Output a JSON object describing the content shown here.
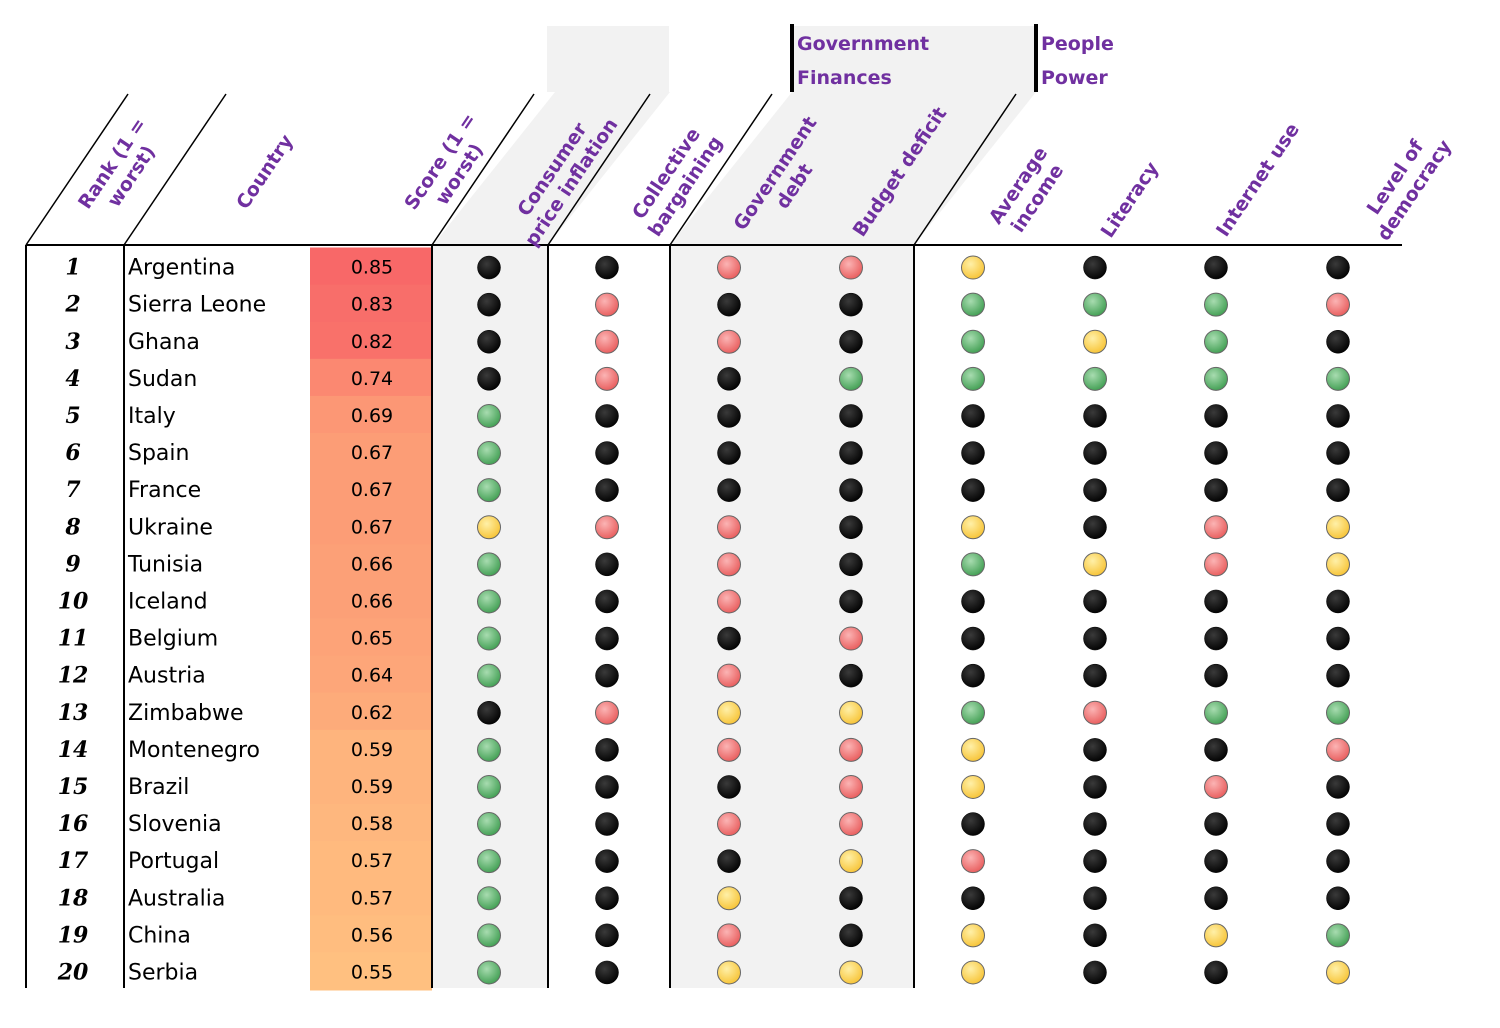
{
  "chart_data": {
    "type": "table",
    "title": "",
    "groups": [
      {
        "label_lines": [
          "Government",
          "Finances"
        ]
      },
      {
        "label_lines": [
          "People",
          "Power"
        ]
      }
    ],
    "columns": [
      {
        "key": "rank",
        "label_lines": [
          "Rank (1 =",
          "worst)"
        ]
      },
      {
        "key": "country",
        "label_lines": [
          "Country"
        ]
      },
      {
        "key": "score",
        "label_lines": [
          "Score (1 =",
          "worst)"
        ]
      },
      {
        "key": "inflation",
        "label_lines": [
          "Consumer",
          "price inflation"
        ]
      },
      {
        "key": "bargaining",
        "label_lines": [
          "Collective",
          "bargaining"
        ]
      },
      {
        "key": "debt",
        "label_lines": [
          "Government",
          "debt"
        ]
      },
      {
        "key": "deficit",
        "label_lines": [
          "Budget deficit"
        ]
      },
      {
        "key": "income",
        "label_lines": [
          "Average",
          "income"
        ]
      },
      {
        "key": "literacy",
        "label_lines": [
          "Literacy"
        ]
      },
      {
        "key": "internet",
        "label_lines": [
          "Internet use"
        ]
      },
      {
        "key": "democracy",
        "label_lines": [
          "Level of",
          "democracy"
        ]
      }
    ],
    "indicator_colors": {
      "black": "#000000",
      "red": "#f07070",
      "yellow": "#ffd24a",
      "green": "#4fae5f"
    },
    "score_colors": {
      "high": "#f86868",
      "low": "#ffc080"
    },
    "rows": [
      {
        "rank": "1",
        "country": "Argentina",
        "score": "0.85",
        "indicators": [
          "black",
          "black",
          "red",
          "red",
          "yellow",
          "black",
          "black",
          "black"
        ]
      },
      {
        "rank": "2",
        "country": "Sierra Leone",
        "score": "0.83",
        "indicators": [
          "black",
          "red",
          "black",
          "black",
          "green",
          "green",
          "green",
          "red"
        ]
      },
      {
        "rank": "3",
        "country": "Ghana",
        "score": "0.82",
        "indicators": [
          "black",
          "red",
          "red",
          "black",
          "green",
          "yellow",
          "green",
          "black"
        ]
      },
      {
        "rank": "4",
        "country": "Sudan",
        "score": "0.74",
        "indicators": [
          "black",
          "red",
          "black",
          "green",
          "green",
          "green",
          "green",
          "green"
        ]
      },
      {
        "rank": "5",
        "country": "Italy",
        "score": "0.69",
        "indicators": [
          "green",
          "black",
          "black",
          "black",
          "black",
          "black",
          "black",
          "black"
        ]
      },
      {
        "rank": "6",
        "country": "Spain",
        "score": "0.67",
        "indicators": [
          "green",
          "black",
          "black",
          "black",
          "black",
          "black",
          "black",
          "black"
        ]
      },
      {
        "rank": "7",
        "country": "France",
        "score": "0.67",
        "indicators": [
          "green",
          "black",
          "black",
          "black",
          "black",
          "black",
          "black",
          "black"
        ]
      },
      {
        "rank": "8",
        "country": "Ukraine",
        "score": "0.67",
        "indicators": [
          "yellow",
          "red",
          "red",
          "black",
          "yellow",
          "black",
          "red",
          "yellow"
        ]
      },
      {
        "rank": "9",
        "country": "Tunisia",
        "score": "0.66",
        "indicators": [
          "green",
          "black",
          "red",
          "black",
          "green",
          "yellow",
          "red",
          "yellow"
        ]
      },
      {
        "rank": "10",
        "country": "Iceland",
        "score": "0.66",
        "indicators": [
          "green",
          "black",
          "red",
          "black",
          "black",
          "black",
          "black",
          "black"
        ]
      },
      {
        "rank": "11",
        "country": "Belgium",
        "score": "0.65",
        "indicators": [
          "green",
          "black",
          "black",
          "red",
          "black",
          "black",
          "black",
          "black"
        ]
      },
      {
        "rank": "12",
        "country": "Austria",
        "score": "0.64",
        "indicators": [
          "green",
          "black",
          "red",
          "black",
          "black",
          "black",
          "black",
          "black"
        ]
      },
      {
        "rank": "13",
        "country": "Zimbabwe",
        "score": "0.62",
        "indicators": [
          "black",
          "red",
          "yellow",
          "yellow",
          "green",
          "red",
          "green",
          "green"
        ]
      },
      {
        "rank": "14",
        "country": "Montenegro",
        "score": "0.59",
        "indicators": [
          "green",
          "black",
          "red",
          "red",
          "yellow",
          "black",
          "black",
          "red"
        ]
      },
      {
        "rank": "15",
        "country": "Brazil",
        "score": "0.59",
        "indicators": [
          "green",
          "black",
          "black",
          "red",
          "yellow",
          "black",
          "red",
          "black"
        ]
      },
      {
        "rank": "16",
        "country": "Slovenia",
        "score": "0.58",
        "indicators": [
          "green",
          "black",
          "red",
          "red",
          "black",
          "black",
          "black",
          "black"
        ]
      },
      {
        "rank": "17",
        "country": "Portugal",
        "score": "0.57",
        "indicators": [
          "green",
          "black",
          "black",
          "yellow",
          "red",
          "black",
          "black",
          "black"
        ]
      },
      {
        "rank": "18",
        "country": "Australia",
        "score": "0.57",
        "indicators": [
          "green",
          "black",
          "yellow",
          "black",
          "black",
          "black",
          "black",
          "black"
        ]
      },
      {
        "rank": "19",
        "country": "China",
        "score": "0.56",
        "indicators": [
          "green",
          "black",
          "red",
          "black",
          "yellow",
          "black",
          "yellow",
          "green"
        ]
      },
      {
        "rank": "20",
        "country": "Serbia",
        "score": "0.55",
        "indicators": [
          "green",
          "black",
          "yellow",
          "yellow",
          "yellow",
          "black",
          "black",
          "yellow"
        ]
      }
    ]
  }
}
